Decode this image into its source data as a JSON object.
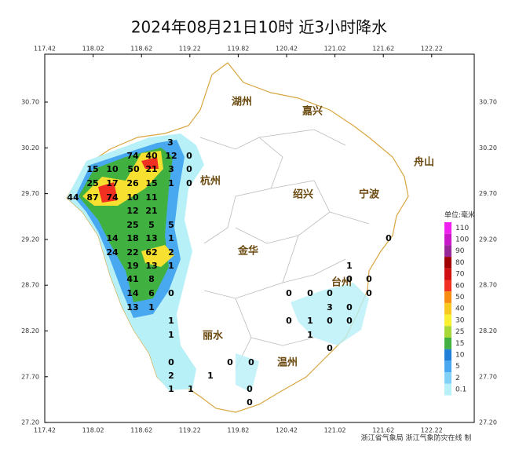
{
  "title": "2024年08月21日10时  近3小时降水",
  "lon_labels": [
    "117.42",
    "118.02",
    "118.62",
    "119.22",
    "119.82",
    "120.42",
    "121.02",
    "121.62",
    "122.22"
  ],
  "lat_labels": [
    "30.70",
    "30.20",
    "29.70",
    "29.20",
    "28.70",
    "28.20",
    "27.70",
    "27.20"
  ],
  "cities": [
    "湖州",
    "嘉兴",
    "杭州",
    "绍兴",
    "宁波",
    "舟山",
    "金华",
    "台州",
    "丽水",
    "温州"
  ],
  "stations": [
    3,
    74,
    40,
    12,
    0,
    15,
    10,
    50,
    21,
    3,
    0,
    25,
    17,
    26,
    15,
    1,
    0,
    44,
    87,
    74,
    10,
    11,
    12,
    21,
    25,
    5,
    5,
    14,
    18,
    13,
    1,
    24,
    22,
    62,
    2,
    19,
    13,
    1,
    41,
    8,
    14,
    6,
    0,
    13,
    1,
    1,
    1,
    0,
    0,
    0,
    2,
    1,
    1,
    1,
    0,
    0,
    0,
    1,
    0,
    0,
    0,
    0,
    0,
    0,
    3,
    0,
    0,
    1,
    0,
    0,
    1,
    0
  ],
  "legend": {
    "title": "单位:毫米",
    "items": [
      {
        "label": "110",
        "color": "#f020f0"
      },
      {
        "label": "100",
        "color": "#c818c8"
      },
      {
        "label": "90",
        "color": "#982898"
      },
      {
        "label": "80",
        "color": "#a00000"
      },
      {
        "label": "70",
        "color": "#d01010"
      },
      {
        "label": "60",
        "color": "#f03020"
      },
      {
        "label": "50",
        "color": "#f88c10"
      },
      {
        "label": "40",
        "color": "#f8c820"
      },
      {
        "label": "30",
        "color": "#f8f030"
      },
      {
        "label": "25",
        "color": "#a8d838"
      },
      {
        "label": "15",
        "color": "#40b040"
      },
      {
        "label": "10",
        "color": "#2080d8"
      },
      {
        "label": "5",
        "color": "#48a8f0"
      },
      {
        "label": "2",
        "color": "#80d0f8"
      },
      {
        "label": "0.1",
        "color": "#b8f0f8"
      }
    ]
  },
  "credit": "浙江省气象局   浙江气象防灾在线 制"
}
